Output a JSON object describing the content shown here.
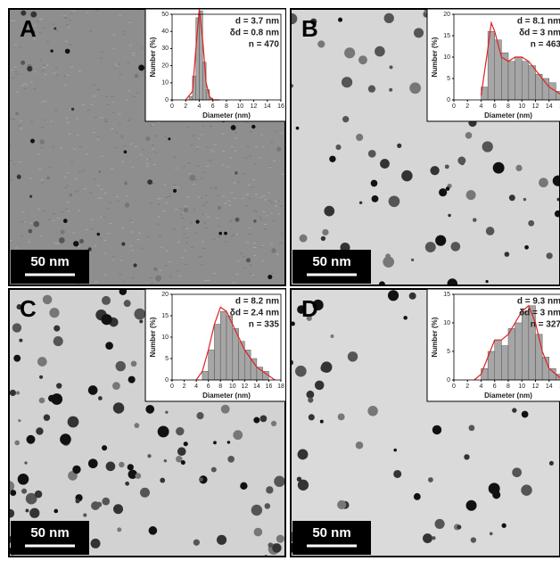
{
  "chart_data": [
    {
      "type": "histogram",
      "panel_label": "A",
      "scale_bar": "50 nm",
      "annotations": [
        "d = 3.7 nm",
        "δd = 0.8 nm",
        "n = 470"
      ],
      "xlabel": "Diameter (nm)",
      "ylabel": "Number (%)",
      "bins": [
        2.5,
        3,
        3.5,
        4,
        4.5,
        5,
        5.5,
        6
      ],
      "values": [
        2,
        14,
        48,
        52,
        22,
        6,
        1
      ],
      "color": "#a6a6a6",
      "xlim": [
        0,
        16
      ],
      "ylim": [
        0,
        50
      ],
      "xticks": [
        0,
        2,
        4,
        6,
        8,
        10,
        12,
        14,
        16
      ],
      "yticks": [
        0,
        10,
        20,
        30,
        40,
        50
      ],
      "fit": {
        "color": "#e02020",
        "x": [
          2,
          3,
          3.5,
          4,
          4.5,
          5,
          5.5,
          6,
          7
        ],
        "values": [
          0,
          5,
          30,
          53,
          35,
          10,
          2,
          0,
          0
        ]
      }
    },
    {
      "type": "histogram",
      "panel_label": "B",
      "scale_bar": "50 nm",
      "annotations": [
        "d = 8.1 nm",
        "δd = 3 nm",
        "n = 463"
      ],
      "xlabel": "Diameter (nm)",
      "ylabel": "Number (%)",
      "bins": [
        4,
        5,
        6,
        7,
        8,
        9,
        10,
        11,
        12,
        13,
        14,
        15,
        16
      ],
      "values": [
        3,
        16,
        14,
        11,
        9,
        10,
        9,
        8,
        6,
        5,
        4,
        2
      ],
      "color": "#a6a6a6",
      "xlim": [
        0,
        16
      ],
      "ylim": [
        0,
        20
      ],
      "xticks": [
        0,
        2,
        4,
        6,
        8,
        10,
        12,
        14,
        16
      ],
      "yticks": [
        0,
        5,
        10,
        15,
        20
      ],
      "fit": {
        "color": "#e02020",
        "x": [
          4,
          5,
          5.5,
          6,
          7,
          8,
          9,
          10,
          11,
          12,
          13,
          14,
          15,
          16
        ],
        "values": [
          1,
          12,
          18,
          16,
          10,
          9,
          10,
          10,
          9,
          7,
          5,
          3,
          2,
          1
        ]
      }
    },
    {
      "type": "histogram",
      "panel_label": "C",
      "scale_bar": "50 nm",
      "annotations": [
        "d = 8.2 nm",
        "δd = 2.4 nm",
        "n = 335"
      ],
      "xlabel": "Diameter (nm)",
      "ylabel": "Number (%)",
      "bins": [
        5,
        6,
        7,
        8,
        9,
        10,
        11,
        12,
        13,
        14,
        15,
        16
      ],
      "values": [
        2,
        7,
        13,
        16,
        15,
        12,
        9,
        7,
        5,
        3,
        2
      ],
      "color": "#a6a6a6",
      "xlim": [
        0,
        18
      ],
      "ylim": [
        0,
        20
      ],
      "xticks": [
        0,
        2,
        4,
        6,
        8,
        10,
        12,
        14,
        16,
        18
      ],
      "yticks": [
        0,
        5,
        10,
        15,
        20
      ],
      "fit": {
        "color": "#e02020",
        "x": [
          4,
          5,
          6,
          7,
          8,
          9,
          10,
          11,
          12,
          13,
          14,
          15,
          16,
          17
        ],
        "values": [
          0,
          2,
          7,
          13,
          17,
          16,
          13,
          10,
          7,
          5,
          3,
          2,
          1,
          0
        ]
      }
    },
    {
      "type": "histogram",
      "panel_label": "D",
      "scale_bar": "50 nm",
      "annotations": [
        "d = 9.3 nm",
        "δd = 3 nm",
        "n = 327"
      ],
      "xlabel": "Diameter (nm)",
      "ylabel": "Number (%)",
      "bins": [
        4,
        5,
        6,
        7,
        8,
        9,
        10,
        11,
        12,
        13,
        14,
        15,
        16
      ],
      "values": [
        2,
        5,
        7,
        6,
        9,
        10,
        12,
        13,
        8,
        4,
        2,
        1
      ],
      "color": "#a6a6a6",
      "xlim": [
        0,
        16
      ],
      "ylim": [
        0,
        15
      ],
      "xticks": [
        0,
        2,
        4,
        6,
        8,
        10,
        12,
        14,
        16
      ],
      "yticks": [
        0,
        5,
        10,
        15
      ],
      "fit": {
        "color": "#e02020",
        "x": [
          3,
          4,
          5,
          6,
          7,
          8,
          9,
          10,
          11,
          12,
          13,
          14,
          15,
          16
        ],
        "values": [
          0,
          1,
          4,
          7,
          7,
          8,
          10,
          12,
          13,
          10,
          5,
          2,
          1,
          0
        ]
      }
    }
  ]
}
